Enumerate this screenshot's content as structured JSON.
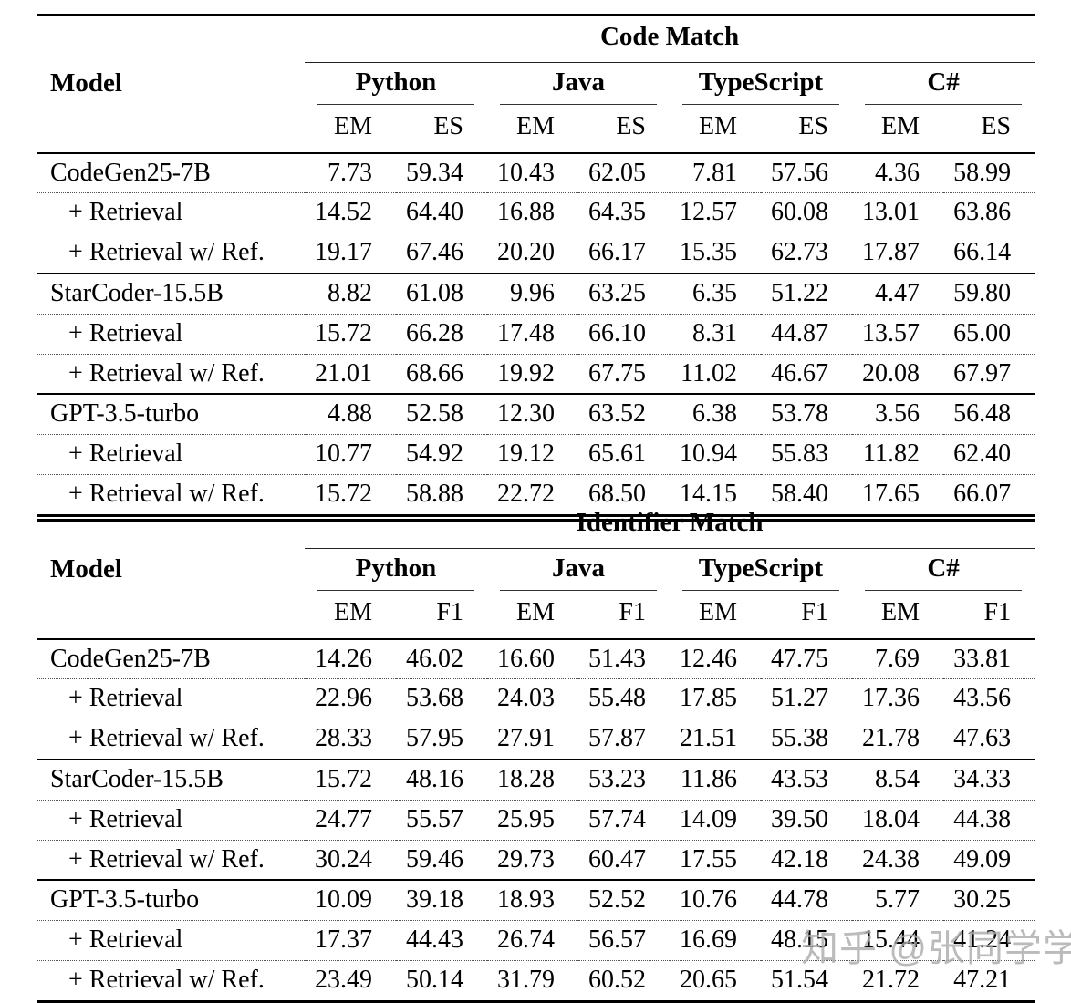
{
  "page": {
    "background": "#ffffff",
    "text_color": "#000000",
    "rule_color": "#000000"
  },
  "watermark": {
    "text": "知乎 @张同学学",
    "color": "#ababab"
  },
  "tables": [
    {
      "section_title": "Code Match",
      "model_header": "Model",
      "languages": [
        "Python",
        "Java",
        "TypeScript",
        "C#"
      ],
      "metrics": [
        "EM",
        "ES"
      ],
      "groups": [
        {
          "rows": [
            {
              "model": "CodeGen25-7B",
              "indent": false,
              "values": [
                "7.73",
                "59.34",
                "10.43",
                "62.05",
                "7.81",
                "57.56",
                "4.36",
                "58.99"
              ]
            },
            {
              "model": "+ Retrieval",
              "indent": true,
              "values": [
                "14.52",
                "64.40",
                "16.88",
                "64.35",
                "12.57",
                "60.08",
                "13.01",
                "63.86"
              ]
            },
            {
              "model": "+ Retrieval w/ Ref.",
              "indent": true,
              "values": [
                "19.17",
                "67.46",
                "20.20",
                "66.17",
                "15.35",
                "62.73",
                "17.87",
                "66.14"
              ]
            }
          ]
        },
        {
          "rows": [
            {
              "model": "StarCoder-15.5B",
              "indent": false,
              "values": [
                "8.82",
                "61.08",
                "9.96",
                "63.25",
                "6.35",
                "51.22",
                "4.47",
                "59.80"
              ]
            },
            {
              "model": "+ Retrieval",
              "indent": true,
              "values": [
                "15.72",
                "66.28",
                "17.48",
                "66.10",
                "8.31",
                "44.87",
                "13.57",
                "65.00"
              ]
            },
            {
              "model": "+ Retrieval w/ Ref.",
              "indent": true,
              "values": [
                "21.01",
                "68.66",
                "19.92",
                "67.75",
                "11.02",
                "46.67",
                "20.08",
                "67.97"
              ]
            }
          ]
        },
        {
          "rows": [
            {
              "model": "GPT-3.5-turbo",
              "indent": false,
              "values": [
                "4.88",
                "52.58",
                "12.30",
                "63.52",
                "6.38",
                "53.78",
                "3.56",
                "56.48"
              ]
            },
            {
              "model": "+ Retrieval",
              "indent": true,
              "values": [
                "10.77",
                "54.92",
                "19.12",
                "65.61",
                "10.94",
                "55.83",
                "11.82",
                "62.40"
              ]
            },
            {
              "model": "+ Retrieval w/ Ref.",
              "indent": true,
              "values": [
                "15.72",
                "58.88",
                "22.72",
                "68.50",
                "14.15",
                "58.40",
                "17.65",
                "66.07"
              ]
            }
          ]
        }
      ]
    },
    {
      "section_title": "Identifier Match",
      "model_header": "Model",
      "languages": [
        "Python",
        "Java",
        "TypeScript",
        "C#"
      ],
      "metrics": [
        "EM",
        "F1"
      ],
      "groups": [
        {
          "rows": [
            {
              "model": "CodeGen25-7B",
              "indent": false,
              "values": [
                "14.26",
                "46.02",
                "16.60",
                "51.43",
                "12.46",
                "47.75",
                "7.69",
                "33.81"
              ]
            },
            {
              "model": "+ Retrieval",
              "indent": true,
              "values": [
                "22.96",
                "53.68",
                "24.03",
                "55.48",
                "17.85",
                "51.27",
                "17.36",
                "43.56"
              ]
            },
            {
              "model": "+ Retrieval w/ Ref.",
              "indent": true,
              "values": [
                "28.33",
                "57.95",
                "27.91",
                "57.87",
                "21.51",
                "55.38",
                "21.78",
                "47.63"
              ]
            }
          ]
        },
        {
          "rows": [
            {
              "model": "StarCoder-15.5B",
              "indent": false,
              "values": [
                "15.72",
                "48.16",
                "18.28",
                "53.23",
                "11.86",
                "43.53",
                "8.54",
                "34.33"
              ]
            },
            {
              "model": "+ Retrieval",
              "indent": true,
              "values": [
                "24.77",
                "55.57",
                "25.95",
                "57.74",
                "14.09",
                "39.50",
                "18.04",
                "44.38"
              ]
            },
            {
              "model": "+ Retrieval w/ Ref.",
              "indent": true,
              "values": [
                "30.24",
                "59.46",
                "29.73",
                "60.47",
                "17.55",
                "42.18",
                "24.38",
                "49.09"
              ]
            }
          ]
        },
        {
          "rows": [
            {
              "model": "GPT-3.5-turbo",
              "indent": false,
              "values": [
                "10.09",
                "39.18",
                "18.93",
                "52.52",
                "10.76",
                "44.78",
                "5.77",
                "30.25"
              ]
            },
            {
              "model": "+ Retrieval",
              "indent": true,
              "values": [
                "17.37",
                "44.43",
                "26.74",
                "56.57",
                "16.69",
                "48.15",
                "15.44",
                "41.24"
              ]
            },
            {
              "model": "+ Retrieval w/ Ref.",
              "indent": true,
              "values": [
                "23.49",
                "50.14",
                "31.79",
                "60.52",
                "20.65",
                "51.54",
                "21.72",
                "47.21"
              ]
            }
          ]
        }
      ]
    }
  ]
}
